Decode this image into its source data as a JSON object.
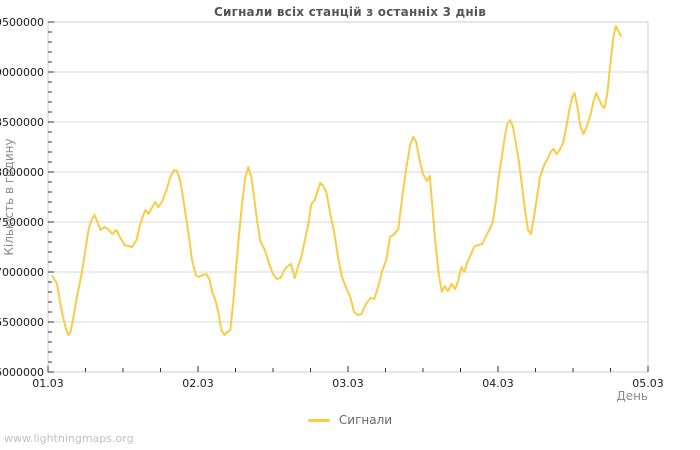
{
  "watermark": {
    "text": "www.lightningmaps.org"
  },
  "colors": {
    "background": "#ffffff",
    "line": "#f8cc47",
    "plot_border": "#cccccc",
    "grid": "#d9d9d9",
    "tick_mark": "#333333",
    "title": "#555555",
    "tick_label": "#1a1a1a",
    "axis_label": "#8a8a8a",
    "legend_text": "#666666",
    "watermark": "#c0c0c0"
  },
  "chart_data": {
    "type": "line",
    "title": "Сигнали всіх станцій з останніх 3 днів",
    "xlabel": "День",
    "ylabel": "Кількість в годину",
    "grid": "horizontal-major-only",
    "legend_position": "bottom-center",
    "xlim_days": [
      0,
      4
    ],
    "ylim": [
      6000000,
      9500000
    ],
    "x_ticks": {
      "labels": [
        "01.03",
        "02.03",
        "03.03",
        "04.03",
        "05.03"
      ],
      "positions_days": [
        0,
        1,
        2,
        3,
        4
      ],
      "minor_interval_days": 0.25
    },
    "y_ticks": [
      6000000,
      6500000,
      7000000,
      7500000,
      8000000,
      8500000,
      9000000,
      9500000
    ],
    "y_minor_interval": 100000,
    "series": [
      {
        "name": "Сигнали",
        "color": "#f8cc47",
        "units": "signals per hour",
        "points": [
          [
            0.03,
            6960000
          ],
          [
            0.06,
            6880000
          ],
          [
            0.08,
            6700000
          ],
          [
            0.1,
            6550000
          ],
          [
            0.12,
            6430000
          ],
          [
            0.135,
            6370000
          ],
          [
            0.15,
            6400000
          ],
          [
            0.17,
            6550000
          ],
          [
            0.19,
            6730000
          ],
          [
            0.22,
            6950000
          ],
          [
            0.245,
            7180000
          ],
          [
            0.27,
            7420000
          ],
          [
            0.29,
            7520000
          ],
          [
            0.31,
            7570000
          ],
          [
            0.33,
            7500000
          ],
          [
            0.35,
            7420000
          ],
          [
            0.375,
            7450000
          ],
          [
            0.4,
            7430000
          ],
          [
            0.43,
            7380000
          ],
          [
            0.455,
            7420000
          ],
          [
            0.48,
            7350000
          ],
          [
            0.51,
            7270000
          ],
          [
            0.535,
            7260000
          ],
          [
            0.56,
            7250000
          ],
          [
            0.59,
            7320000
          ],
          [
            0.61,
            7450000
          ],
          [
            0.63,
            7550000
          ],
          [
            0.65,
            7620000
          ],
          [
            0.67,
            7580000
          ],
          [
            0.695,
            7650000
          ],
          [
            0.715,
            7700000
          ],
          [
            0.735,
            7650000
          ],
          [
            0.76,
            7700000
          ],
          [
            0.79,
            7820000
          ],
          [
            0.815,
            7950000
          ],
          [
            0.84,
            8020000
          ],
          [
            0.86,
            8010000
          ],
          [
            0.88,
            7920000
          ],
          [
            0.9,
            7750000
          ],
          [
            0.92,
            7550000
          ],
          [
            0.94,
            7350000
          ],
          [
            0.96,
            7120000
          ],
          [
            0.985,
            6970000
          ],
          [
            1.005,
            6950000
          ],
          [
            1.03,
            6970000
          ],
          [
            1.055,
            6980000
          ],
          [
            1.075,
            6930000
          ],
          [
            1.095,
            6800000
          ],
          [
            1.115,
            6720000
          ],
          [
            1.135,
            6600000
          ],
          [
            1.155,
            6420000
          ],
          [
            1.175,
            6370000
          ],
          [
            1.195,
            6400000
          ],
          [
            1.215,
            6420000
          ],
          [
            1.235,
            6700000
          ],
          [
            1.255,
            7050000
          ],
          [
            1.275,
            7400000
          ],
          [
            1.295,
            7700000
          ],
          [
            1.315,
            7950000
          ],
          [
            1.335,
            8050000
          ],
          [
            1.355,
            7950000
          ],
          [
            1.375,
            7730000
          ],
          [
            1.395,
            7500000
          ],
          [
            1.415,
            7310000
          ],
          [
            1.445,
            7220000
          ],
          [
            1.47,
            7100000
          ],
          [
            1.5,
            6980000
          ],
          [
            1.525,
            6930000
          ],
          [
            1.55,
            6940000
          ],
          [
            1.575,
            7020000
          ],
          [
            1.6,
            7060000
          ],
          [
            1.62,
            7080000
          ],
          [
            1.645,
            6940000
          ],
          [
            1.665,
            7050000
          ],
          [
            1.685,
            7130000
          ],
          [
            1.71,
            7300000
          ],
          [
            1.735,
            7480000
          ],
          [
            1.755,
            7680000
          ],
          [
            1.775,
            7710000
          ],
          [
            1.795,
            7800000
          ],
          [
            1.815,
            7890000
          ],
          [
            1.835,
            7860000
          ],
          [
            1.855,
            7800000
          ],
          [
            1.88,
            7600000
          ],
          [
            1.91,
            7380000
          ],
          [
            1.935,
            7130000
          ],
          [
            1.96,
            6950000
          ],
          [
            1.985,
            6850000
          ],
          [
            2.015,
            6750000
          ],
          [
            2.04,
            6600000
          ],
          [
            2.065,
            6570000
          ],
          [
            2.09,
            6580000
          ],
          [
            2.12,
            6680000
          ],
          [
            2.15,
            6740000
          ],
          [
            2.175,
            6730000
          ],
          [
            2.2,
            6850000
          ],
          [
            2.23,
            7020000
          ],
          [
            2.255,
            7120000
          ],
          [
            2.28,
            7350000
          ],
          [
            2.31,
            7380000
          ],
          [
            2.335,
            7430000
          ],
          [
            2.36,
            7730000
          ],
          [
            2.39,
            8050000
          ],
          [
            2.415,
            8280000
          ],
          [
            2.435,
            8350000
          ],
          [
            2.455,
            8300000
          ],
          [
            2.475,
            8130000
          ],
          [
            2.5,
            7980000
          ],
          [
            2.525,
            7910000
          ],
          [
            2.545,
            7960000
          ],
          [
            2.565,
            7600000
          ],
          [
            2.585,
            7250000
          ],
          [
            2.605,
            6980000
          ],
          [
            2.625,
            6800000
          ],
          [
            2.645,
            6860000
          ],
          [
            2.665,
            6810000
          ],
          [
            2.69,
            6880000
          ],
          [
            2.715,
            6830000
          ],
          [
            2.735,
            6920000
          ],
          [
            2.755,
            7050000
          ],
          [
            2.775,
            7000000
          ],
          [
            2.795,
            7100000
          ],
          [
            2.815,
            7160000
          ],
          [
            2.84,
            7250000
          ],
          [
            2.865,
            7270000
          ],
          [
            2.895,
            7280000
          ],
          [
            2.92,
            7360000
          ],
          [
            2.945,
            7430000
          ],
          [
            2.965,
            7500000
          ],
          [
            2.985,
            7700000
          ],
          [
            3.005,
            7950000
          ],
          [
            3.025,
            8150000
          ],
          [
            3.045,
            8350000
          ],
          [
            3.06,
            8470000
          ],
          [
            3.08,
            8520000
          ],
          [
            3.1,
            8450000
          ],
          [
            3.12,
            8280000
          ],
          [
            3.14,
            8100000
          ],
          [
            3.16,
            7860000
          ],
          [
            3.18,
            7620000
          ],
          [
            3.2,
            7420000
          ],
          [
            3.22,
            7380000
          ],
          [
            3.24,
            7550000
          ],
          [
            3.26,
            7750000
          ],
          [
            3.28,
            7950000
          ],
          [
            3.31,
            8080000
          ],
          [
            3.33,
            8130000
          ],
          [
            3.35,
            8200000
          ],
          [
            3.37,
            8230000
          ],
          [
            3.39,
            8180000
          ],
          [
            3.415,
            8230000
          ],
          [
            3.435,
            8300000
          ],
          [
            3.455,
            8450000
          ],
          [
            3.475,
            8620000
          ],
          [
            3.495,
            8750000
          ],
          [
            3.51,
            8790000
          ],
          [
            3.53,
            8650000
          ],
          [
            3.55,
            8450000
          ],
          [
            3.57,
            8380000
          ],
          [
            3.59,
            8450000
          ],
          [
            3.615,
            8560000
          ],
          [
            3.635,
            8700000
          ],
          [
            3.655,
            8790000
          ],
          [
            3.675,
            8720000
          ],
          [
            3.695,
            8660000
          ],
          [
            3.71,
            8640000
          ],
          [
            3.73,
            8800000
          ],
          [
            3.75,
            9100000
          ],
          [
            3.77,
            9350000
          ],
          [
            3.785,
            9460000
          ],
          [
            3.805,
            9400000
          ],
          [
            3.82,
            9360000
          ]
        ]
      }
    ]
  }
}
